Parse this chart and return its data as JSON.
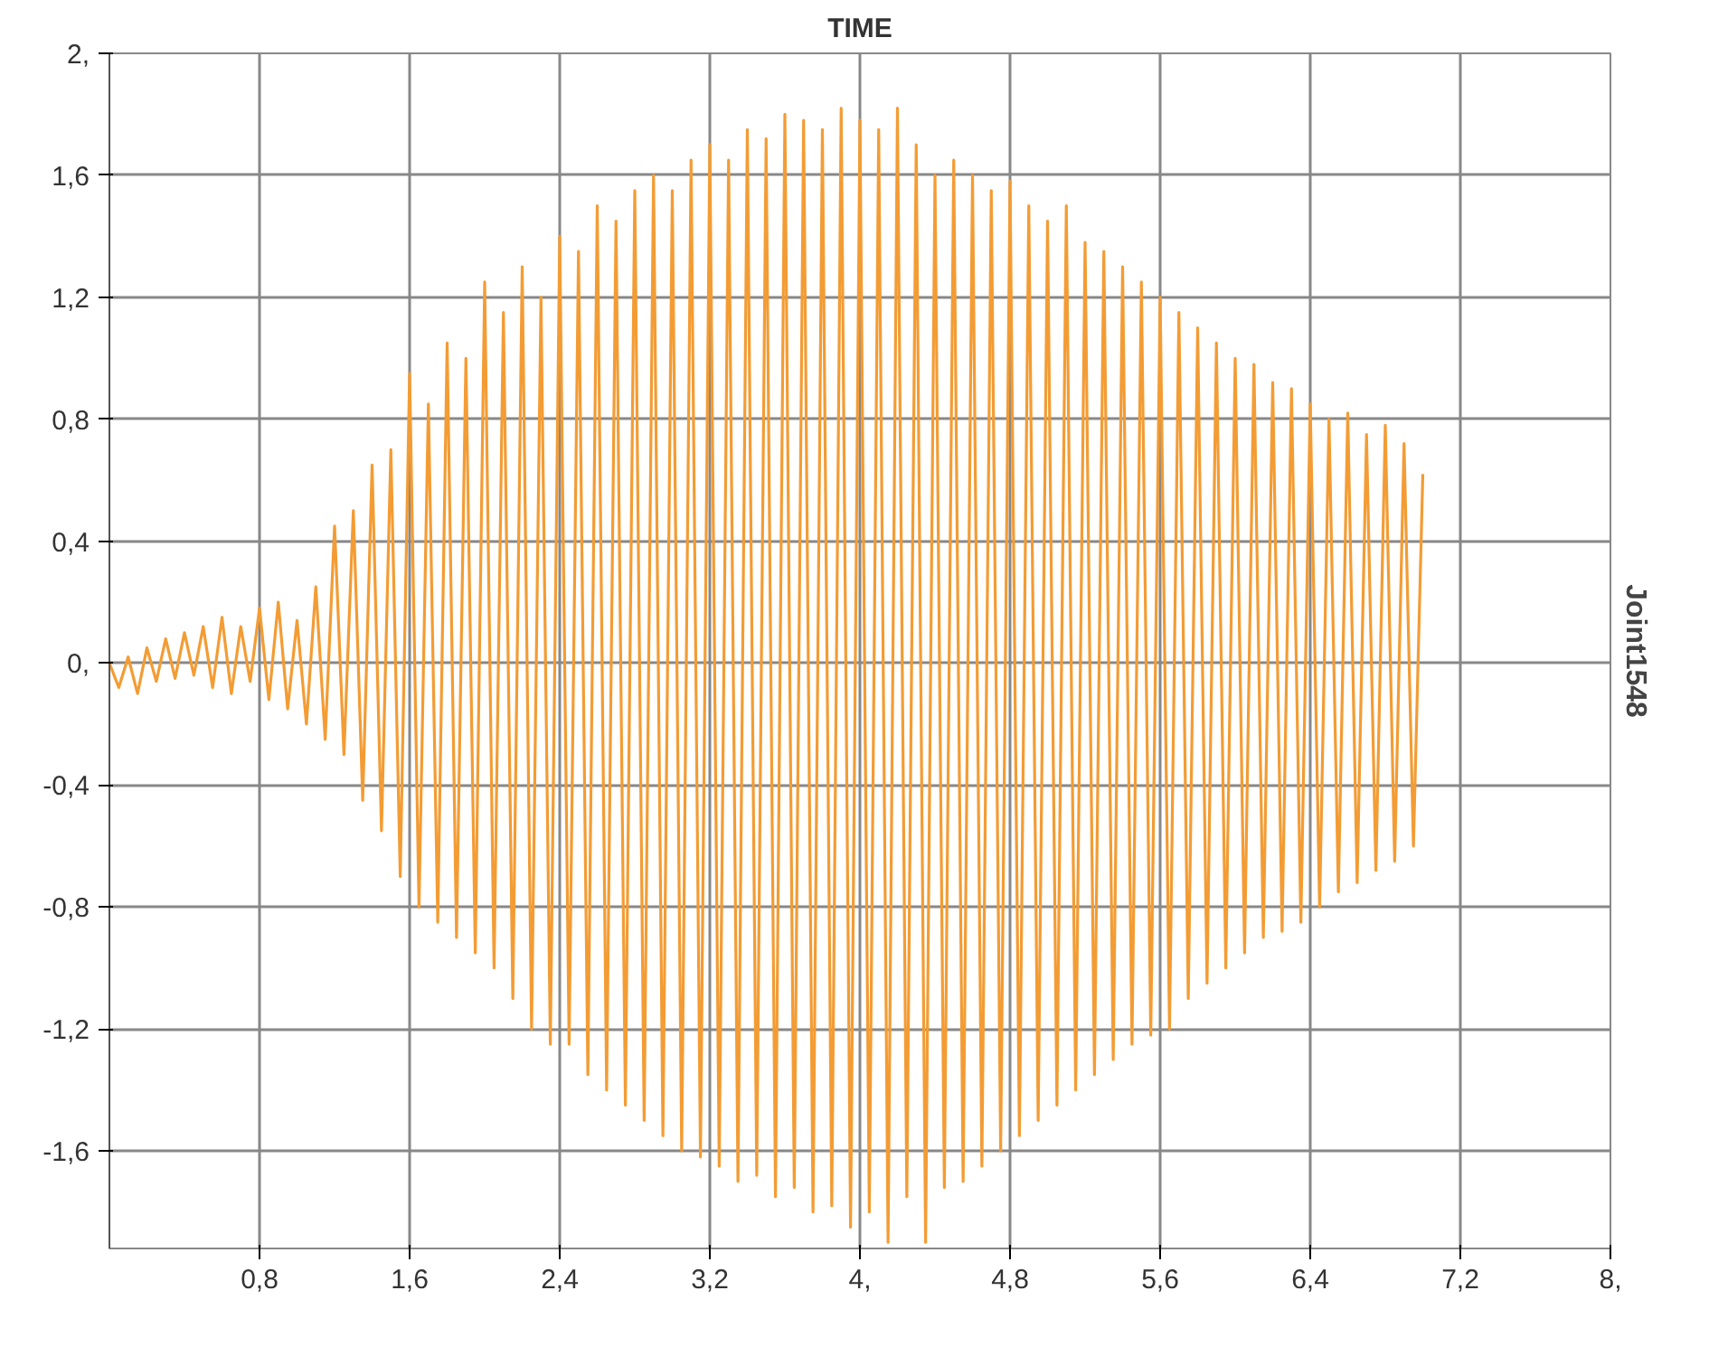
{
  "chart_data": {
    "type": "line",
    "title": "TIME",
    "ylabel": "Joint1548",
    "x": [
      0,
      0.05,
      0.1,
      0.15,
      0.2,
      0.25,
      0.3,
      0.35,
      0.4,
      0.45,
      0.5,
      0.55,
      0.6,
      0.65,
      0.7,
      0.75,
      0.8,
      0.85,
      0.9,
      0.95,
      1.0,
      1.05,
      1.1,
      1.15,
      1.2,
      1.25,
      1.3,
      1.35,
      1.4,
      1.45,
      1.5,
      1.55,
      1.6,
      1.65,
      1.7,
      1.75,
      1.8,
      1.85,
      1.9,
      1.95,
      2.0,
      2.05,
      2.1,
      2.15,
      2.2,
      2.25,
      2.3,
      2.35,
      2.4,
      2.45,
      2.5,
      2.55,
      2.6,
      2.65,
      2.7,
      2.75,
      2.8,
      2.85,
      2.9,
      2.95,
      3.0,
      3.05,
      3.1,
      3.15,
      3.2,
      3.25,
      3.3,
      3.35,
      3.4,
      3.45,
      3.5,
      3.55,
      3.6,
      3.65,
      3.7,
      3.75,
      3.8,
      3.85,
      3.9,
      3.95,
      4.0,
      4.05,
      4.1,
      4.15,
      4.2,
      4.25,
      4.3,
      4.35,
      4.4,
      4.45,
      4.5,
      4.55,
      4.6,
      4.65,
      4.7,
      4.75,
      4.8,
      4.85,
      4.9,
      4.95,
      5.0,
      5.05,
      5.1,
      5.15,
      5.2,
      5.25,
      5.3,
      5.35,
      5.4,
      5.45,
      5.5,
      5.55,
      5.6,
      5.65,
      5.7,
      5.75,
      5.8,
      5.85,
      5.9,
      5.95,
      6.0,
      6.05,
      6.1,
      6.15,
      6.2,
      6.25,
      6.3,
      6.35,
      6.4,
      6.45,
      6.5,
      6.55,
      6.6,
      6.65,
      6.7,
      6.75,
      6.8,
      6.85,
      6.9,
      6.95,
      7.0
    ],
    "series": [
      {
        "color": "#f39c34",
        "values": [
          0,
          -0.08,
          0.02,
          -0.1,
          0.05,
          -0.06,
          0.08,
          -0.05,
          0.1,
          -0.04,
          0.12,
          -0.08,
          0.15,
          -0.1,
          0.12,
          -0.06,
          0.18,
          -0.12,
          0.2,
          -0.15,
          0.14,
          -0.2,
          0.25,
          -0.25,
          0.45,
          -0.3,
          0.5,
          -0.45,
          0.65,
          -0.55,
          0.7,
          -0.7,
          0.95,
          -0.8,
          0.85,
          -0.85,
          1.05,
          -0.9,
          1.0,
          -0.95,
          1.25,
          -1.0,
          1.15,
          -1.1,
          1.3,
          -1.2,
          1.2,
          -1.25,
          1.4,
          -1.25,
          1.35,
          -1.35,
          1.5,
          -1.4,
          1.45,
          -1.45,
          1.55,
          -1.5,
          1.6,
          -1.55,
          1.55,
          -1.6,
          1.65,
          -1.62,
          1.7,
          -1.65,
          1.65,
          -1.7,
          1.75,
          -1.68,
          1.72,
          -1.75,
          1.8,
          -1.72,
          1.78,
          -1.8,
          1.75,
          -1.78,
          1.82,
          -1.85,
          1.78,
          -1.8,
          1.75,
          -1.9,
          1.82,
          -1.75,
          1.7,
          -1.9,
          1.6,
          -1.72,
          1.65,
          -1.7,
          1.6,
          -1.65,
          1.55,
          -1.6,
          1.58,
          -1.55,
          1.5,
          -1.5,
          1.45,
          -1.45,
          1.5,
          -1.4,
          1.38,
          -1.35,
          1.35,
          -1.3,
          1.3,
          -1.25,
          1.25,
          -1.22,
          1.2,
          -1.2,
          1.15,
          -1.1,
          1.1,
          -1.05,
          1.05,
          -1.0,
          1.0,
          -0.95,
          0.98,
          -0.9,
          0.92,
          -0.88,
          0.9,
          -0.85,
          0.85,
          -0.8,
          0.8,
          -0.75,
          0.82,
          -0.72,
          0.75,
          -0.68,
          0.78,
          -0.65,
          0.72,
          -0.6,
          0.62
        ]
      }
    ],
    "xlim": [
      0,
      8
    ],
    "ylim": [
      -1.92,
      2.0
    ],
    "xticks": [
      {
        "value": 0.8,
        "label": "0,8"
      },
      {
        "value": 1.6,
        "label": "1,6"
      },
      {
        "value": 2.4,
        "label": "2,4"
      },
      {
        "value": 3.2,
        "label": "3,2"
      },
      {
        "value": 4.0,
        "label": "4,"
      },
      {
        "value": 4.8,
        "label": "4,8"
      },
      {
        "value": 5.6,
        "label": "5,6"
      },
      {
        "value": 6.4,
        "label": "6,4"
      },
      {
        "value": 7.2,
        "label": "7,2"
      },
      {
        "value": 8.0,
        "label": "8,"
      }
    ],
    "yticks": [
      {
        "value": -1.6,
        "label": "-1,6"
      },
      {
        "value": -1.2,
        "label": "-1,2"
      },
      {
        "value": -0.8,
        "label": "-0,8"
      },
      {
        "value": -0.4,
        "label": "-0,4"
      },
      {
        "value": 0,
        "label": "0,"
      },
      {
        "value": 0.4,
        "label": "0,4"
      },
      {
        "value": 0.8,
        "label": "0,8"
      },
      {
        "value": 1.2,
        "label": "1,2"
      },
      {
        "value": 1.6,
        "label": "1,6"
      },
      {
        "value": 2.0,
        "label": "2,"
      }
    ],
    "grid": true
  }
}
